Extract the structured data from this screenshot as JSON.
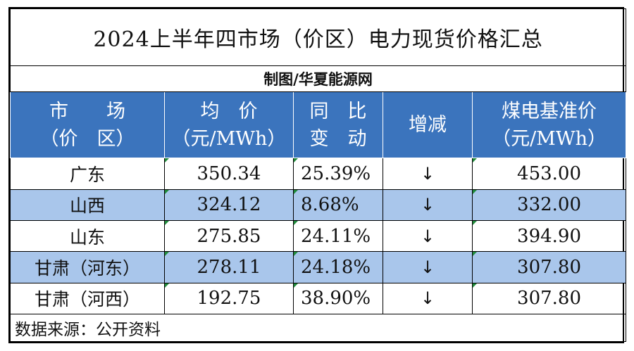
{
  "title": "2024上半年四市场（价区）电力现货价格汇总",
  "credit": "制图/华夏能源网",
  "columns": {
    "market": [
      "市　　场",
      "（价　区）"
    ],
    "avg_price": [
      "均　价",
      "（元/MWh）"
    ],
    "yoy": [
      "同　比",
      "变　动"
    ],
    "change": "增减",
    "coal_price": [
      "煤电基准价",
      "（元/MWh）"
    ]
  },
  "rows": [
    {
      "market": "广东",
      "avg_price": "350.34",
      "yoy": "25.39%",
      "change": "↓",
      "coal_price": "453.00"
    },
    {
      "market": "山西",
      "avg_price": "324.12",
      "yoy": "8.68%",
      "change": "↓",
      "coal_price": "332.00"
    },
    {
      "market": "山东",
      "avg_price": "275.85",
      "yoy": "24.11%",
      "change": "↓",
      "coal_price": "394.90"
    },
    {
      "market": "甘肃（河东）",
      "avg_price": "278.11",
      "yoy": "24.18%",
      "change": "↓",
      "coal_price": "307.80"
    },
    {
      "market": "甘肃（河西）",
      "avg_price": "192.75",
      "yoy": "38.90%",
      "change": "↓",
      "coal_price": "307.80"
    }
  ],
  "source": "数据来源：公开资料",
  "colors": {
    "header_bg": "#3b74bd",
    "alt_row_bg": "#a9c6eb",
    "cell_marker": "#1f8a3a"
  }
}
